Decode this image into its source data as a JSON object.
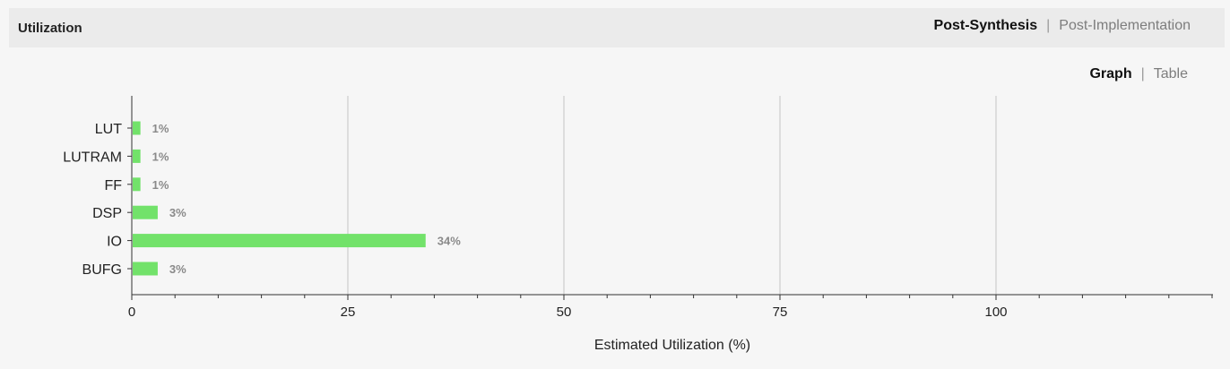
{
  "header": {
    "title": "Utilization",
    "tabs": [
      {
        "label": "Post-Synthesis",
        "active": true
      },
      {
        "label": "Post-Implementation",
        "active": false
      }
    ],
    "separator": "|"
  },
  "view_toggle": {
    "options": [
      {
        "label": "Graph",
        "active": true
      },
      {
        "label": "Table",
        "active": false
      }
    ],
    "separator": "|"
  },
  "colors": {
    "bar": "#72e26a",
    "gridline": "#c4c4c4",
    "axis": "#333333",
    "value_label": "#8a8a8a"
  },
  "chart_data": {
    "type": "bar",
    "orientation": "horizontal",
    "categories": [
      "LUT",
      "LUTRAM",
      "FF",
      "DSP",
      "IO",
      "BUFG"
    ],
    "values": [
      1,
      1,
      1,
      3,
      34,
      3
    ],
    "value_labels": [
      "1%",
      "1%",
      "1%",
      "3%",
      "34%",
      "3%"
    ],
    "xlabel": "Estimated Utilization (%)",
    "ylabel": "",
    "xlim": [
      0,
      125
    ],
    "x_ticks": [
      0,
      25,
      50,
      75,
      100
    ],
    "x_tick_labels": [
      "0",
      "25",
      "50",
      "75",
      "100"
    ],
    "minor_tick_step": 5,
    "grid": true,
    "legend": false
  }
}
